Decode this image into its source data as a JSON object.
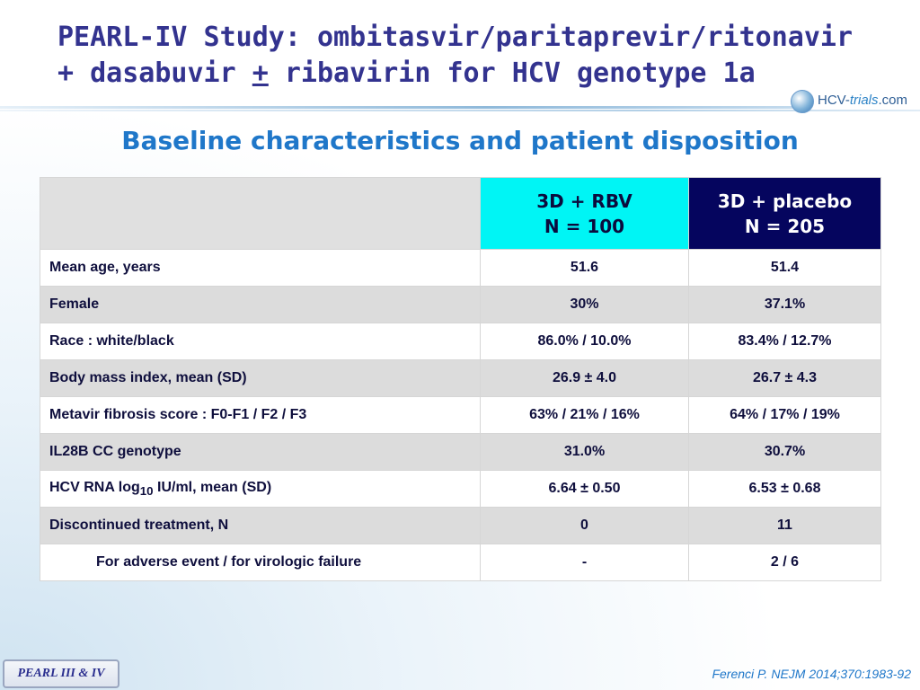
{
  "title": {
    "line1": "PEARL-IV Study: ombitasvir/paritaprevir/ritonavir",
    "line2_pre": "+ dasabuvir ",
    "line2_pm": "+",
    "line2_post": " ribavirin for HCV genotype 1a"
  },
  "logo": {
    "hcv": "HCV-",
    "trials": "trials",
    "com": ".com"
  },
  "subtitle": "Baseline characteristics and patient disposition",
  "table": {
    "headers": {
      "col2_line1": "3D + RBV",
      "col2_line2": "N = 100",
      "col3_line1": "3D + placebo",
      "col3_line2": "N = 205"
    },
    "rows": [
      {
        "label": "Mean age, years",
        "rbv": "51.6",
        "placebo": "51.4"
      },
      {
        "label": "Female",
        "rbv": "30%",
        "placebo": "37.1%"
      },
      {
        "label": "Race : white/black",
        "rbv": "86.0% / 10.0%",
        "placebo": "83.4% / 12.7%"
      },
      {
        "label": "Body mass index, mean (SD)",
        "rbv": "26.9 ± 4.0",
        "placebo": "26.7 ± 4.3"
      },
      {
        "label": "Metavir fibrosis score : F0-F1 / F2 / F3",
        "rbv": "63% /  21% / 16%",
        "placebo": "64% / 17% / 19%"
      },
      {
        "label": "IL28B CC genotype",
        "rbv": "31.0%",
        "placebo": "30.7%"
      },
      {
        "label_pre": "HCV RNA log",
        "label_sub": "10",
        "label_post": " IU/ml, mean (SD)",
        "rbv": "6.64 ± 0.50",
        "placebo": "6.53 ± 0.68"
      },
      {
        "label": "Discontinued treatment, N",
        "rbv": "0",
        "placebo": "11"
      },
      {
        "label": "For adverse event / for virologic failure",
        "rbv": "-",
        "placebo": "2 / 6"
      }
    ]
  },
  "footer": {
    "badge": "PEARL III & IV",
    "citation": "Ferenci P. NEJM 2014;370:1983-92"
  },
  "colors": {
    "title": "#33338f",
    "subtitle": "#1f77c9",
    "rbv_header": "#00f5f5",
    "placebo_header": "#05055e"
  }
}
